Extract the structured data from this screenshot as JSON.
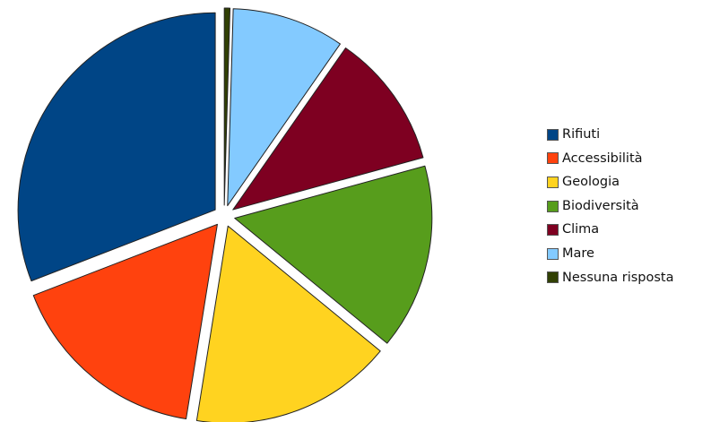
{
  "chart_data": {
    "type": "pie",
    "title": "",
    "unit": "%",
    "slices": [
      {
        "label": "Rifiuti",
        "value": 33.5,
        "color": "#004586"
      },
      {
        "label": "Accessibilità",
        "value": 18.0,
        "color": "#ff420e"
      },
      {
        "label": "Geologia",
        "value": 18.0,
        "color": "#ffd320"
      },
      {
        "label": "Biodiversità",
        "value": 16.5,
        "color": "#579d1c"
      },
      {
        "label": "Clima",
        "value": 12.0,
        "color": "#7e0021"
      },
      {
        "label": "Mare",
        "value": 10.0,
        "color": "#83caff"
      },
      {
        "label": "Nessuna risposta",
        "value": 0.5,
        "color": "#314004"
      }
    ],
    "exploded": true,
    "legend_position": "right",
    "slice_order": "counter-clockwise from 12 o'clock"
  }
}
